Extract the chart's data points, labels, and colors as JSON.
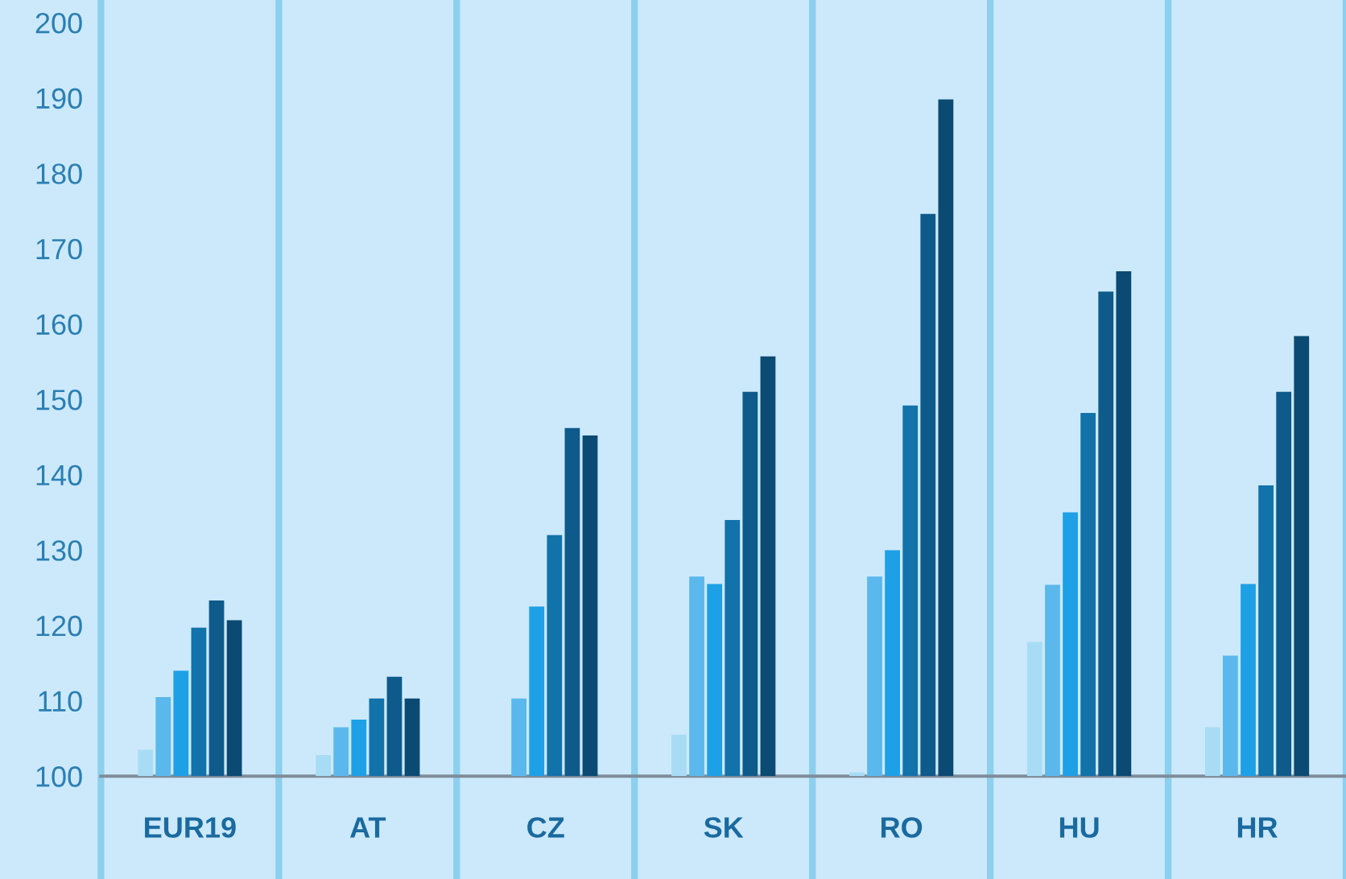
{
  "chart_data": {
    "type": "bar",
    "categories": [
      "EUR19",
      "AT",
      "CZ",
      "SK",
      "RO",
      "HU",
      "HR"
    ],
    "series": [
      {
        "color": "#a8dcf5",
        "values": [
          103.5,
          102.8,
          null,
          105.5,
          100.5,
          117.8,
          106.5
        ]
      },
      {
        "color": "#5bb8ec",
        "values": [
          110.5,
          106.5,
          110.3,
          126.5,
          126.5,
          125.4,
          116
        ]
      },
      {
        "color": "#1ea0e6",
        "values": [
          114,
          107.5,
          122.5,
          125.5,
          130,
          135,
          125.5
        ]
      },
      {
        "color": "#1272aa",
        "values": [
          119.7,
          110.3,
          132,
          134,
          149.2,
          148.2,
          138.6
        ]
      },
      {
        "color": "#0e5a8a",
        "values": [
          123.3,
          113.2,
          146.2,
          151,
          174.6,
          164.3,
          151
        ]
      },
      {
        "color": "#0b4a72",
        "values": [
          120.7,
          110.3,
          145.2,
          155.7,
          189.8,
          167,
          158.4
        ]
      }
    ],
    "ylim": [
      100,
      203
    ],
    "yticks": [
      100,
      110,
      120,
      130,
      140,
      150,
      160,
      170,
      180,
      190,
      200
    ],
    "grid": "x",
    "legend": false
  }
}
